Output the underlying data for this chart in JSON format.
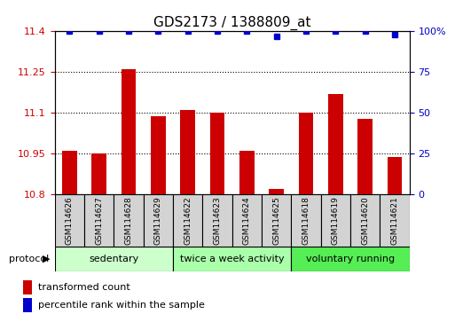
{
  "title": "GDS2173 / 1388809_at",
  "samples": [
    "GSM114626",
    "GSM114627",
    "GSM114628",
    "GSM114629",
    "GSM114622",
    "GSM114623",
    "GSM114624",
    "GSM114625",
    "GSM114618",
    "GSM114619",
    "GSM114620",
    "GSM114621"
  ],
  "red_values": [
    10.96,
    10.95,
    11.26,
    11.09,
    11.11,
    11.1,
    10.96,
    10.82,
    11.1,
    11.17,
    11.08,
    10.94
  ],
  "blue_values": [
    100,
    100,
    100,
    100,
    100,
    100,
    100,
    97,
    100,
    100,
    100,
    98
  ],
  "ylim_left": [
    10.8,
    11.4
  ],
  "ylim_right": [
    0,
    100
  ],
  "yticks_left": [
    10.8,
    10.95,
    11.1,
    11.25,
    11.4
  ],
  "yticks_right": [
    0,
    25,
    50,
    75,
    100
  ],
  "ytick_right_labels": [
    "0",
    "25",
    "50",
    "75",
    "100%"
  ],
  "groups": [
    {
      "label": "sedentary",
      "start": 0,
      "end": 4,
      "color": "#ccffcc"
    },
    {
      "label": "twice a week activity",
      "start": 4,
      "end": 8,
      "color": "#aaffaa"
    },
    {
      "label": "voluntary running",
      "start": 8,
      "end": 12,
      "color": "#55ee55"
    }
  ],
  "legend_red": "transformed count",
  "legend_blue": "percentile rank within the sample",
  "protocol_label": "protocol",
  "bar_color": "#cc0000",
  "dot_color": "#0000cc",
  "bar_bottom": 10.8,
  "background_color": "#ffffff"
}
